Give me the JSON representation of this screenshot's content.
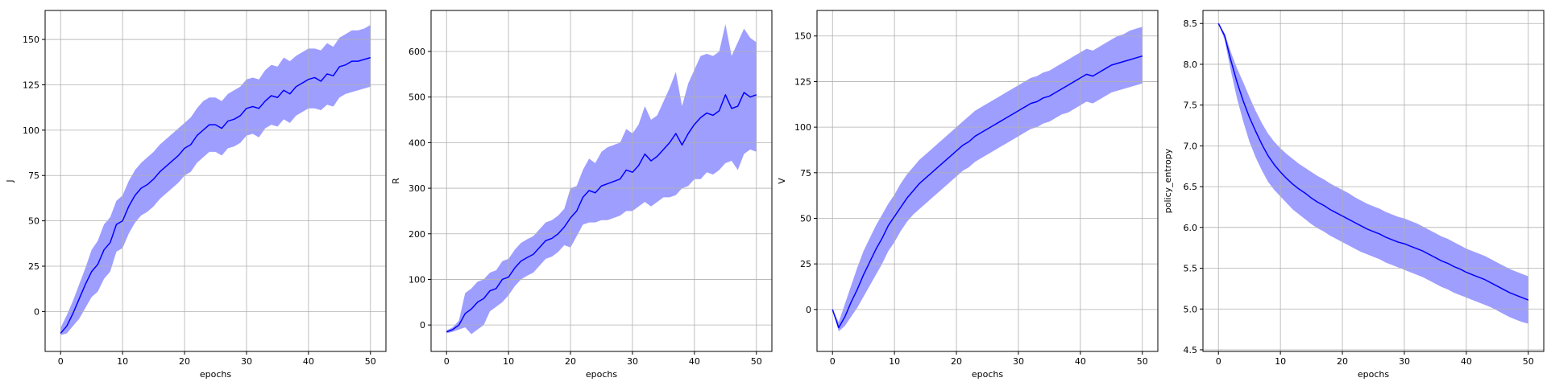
{
  "colors": {
    "line": "#0000ff",
    "band": "#9e9eff",
    "grid": "#b0b0b0"
  },
  "chart_data": [
    {
      "type": "line",
      "xlabel": "epochs",
      "ylabel": "J",
      "xlim": [
        -2.5,
        52.5
      ],
      "ylim": [
        -22,
        166
      ],
      "xticks": [
        0,
        10,
        20,
        30,
        40,
        50
      ],
      "yticks": [
        0,
        25,
        50,
        75,
        100,
        125,
        150
      ],
      "grid": true,
      "x": [
        0,
        1,
        2,
        3,
        4,
        5,
        6,
        7,
        8,
        9,
        10,
        11,
        12,
        13,
        14,
        15,
        16,
        17,
        18,
        19,
        20,
        21,
        22,
        23,
        24,
        25,
        26,
        27,
        28,
        29,
        30,
        31,
        32,
        33,
        34,
        35,
        36,
        37,
        38,
        39,
        40,
        41,
        42,
        43,
        44,
        45,
        46,
        47,
        48,
        49,
        50
      ],
      "mean": [
        -12,
        -8,
        -1,
        7,
        15,
        22,
        26,
        34,
        38,
        48,
        50,
        58,
        64,
        68,
        70,
        73,
        77,
        80,
        83,
        86,
        90,
        92,
        97,
        100,
        103,
        103,
        101,
        105,
        106,
        108,
        112,
        113,
        112,
        116,
        119,
        118,
        122,
        120,
        124,
        126,
        128,
        129,
        127,
        131,
        130,
        135,
        136,
        138,
        138,
        139,
        140
      ],
      "upper": [
        -9,
        -2,
        6,
        15,
        24,
        34,
        39,
        48,
        52,
        61,
        64,
        72,
        78,
        82,
        85,
        88,
        92,
        95,
        98,
        101,
        104,
        107,
        112,
        116,
        118,
        118,
        116,
        120,
        122,
        124,
        128,
        129,
        128,
        133,
        136,
        135,
        140,
        138,
        141,
        143,
        145,
        145,
        144,
        148,
        146,
        151,
        153,
        155,
        155,
        156,
        158
      ],
      "lower": [
        -13,
        -12,
        -8,
        -4,
        2,
        8,
        11,
        18,
        22,
        33,
        35,
        43,
        49,
        53,
        55,
        58,
        62,
        65,
        68,
        71,
        75,
        77,
        82,
        85,
        88,
        88,
        86,
        90,
        91,
        93,
        97,
        98,
        96,
        101,
        103,
        102,
        106,
        104,
        108,
        110,
        112,
        112,
        111,
        114,
        113,
        118,
        120,
        121,
        122,
        123,
        124
      ]
    },
    {
      "type": "line",
      "xlabel": "epochs",
      "ylabel": "R",
      "xlim": [
        -2.5,
        52.5
      ],
      "ylim": [
        -58,
        690
      ],
      "xticks": [
        0,
        10,
        20,
        30,
        40,
        50
      ],
      "yticks": [
        0,
        100,
        200,
        300,
        400,
        500,
        600
      ],
      "grid": true,
      "x": [
        0,
        1,
        2,
        3,
        4,
        5,
        6,
        7,
        8,
        9,
        10,
        11,
        12,
        13,
        14,
        15,
        16,
        17,
        18,
        19,
        20,
        21,
        22,
        23,
        24,
        25,
        26,
        27,
        28,
        29,
        30,
        31,
        32,
        33,
        34,
        35,
        36,
        37,
        38,
        39,
        40,
        41,
        42,
        43,
        44,
        45,
        46,
        47,
        48,
        49,
        50
      ],
      "mean": [
        -15,
        -10,
        0,
        25,
        35,
        50,
        58,
        75,
        80,
        100,
        105,
        125,
        140,
        148,
        155,
        170,
        185,
        190,
        200,
        215,
        235,
        250,
        280,
        295,
        290,
        305,
        310,
        315,
        320,
        340,
        335,
        350,
        375,
        360,
        370,
        385,
        400,
        420,
        395,
        420,
        440,
        455,
        465,
        460,
        470,
        505,
        475,
        480,
        510,
        500,
        505
      ],
      "upper": [
        -12,
        -5,
        10,
        70,
        80,
        95,
        100,
        115,
        120,
        140,
        145,
        165,
        180,
        188,
        195,
        210,
        225,
        230,
        240,
        255,
        300,
        305,
        340,
        365,
        355,
        380,
        390,
        395,
        400,
        430,
        420,
        440,
        480,
        450,
        460,
        490,
        520,
        555,
        480,
        530,
        560,
        590,
        595,
        590,
        600,
        660,
        590,
        620,
        650,
        630,
        620
      ],
      "lower": [
        -18,
        -15,
        -10,
        -5,
        -20,
        -10,
        0,
        30,
        40,
        50,
        65,
        85,
        100,
        108,
        115,
        130,
        145,
        150,
        160,
        175,
        170,
        195,
        220,
        225,
        225,
        230,
        230,
        235,
        240,
        250,
        250,
        260,
        270,
        260,
        270,
        280,
        280,
        285,
        300,
        305,
        320,
        320,
        335,
        330,
        340,
        355,
        360,
        340,
        375,
        385,
        380
      ]
    },
    {
      "type": "line",
      "xlabel": "epochs",
      "ylabel": "V",
      "xlim": [
        -2.5,
        52.5
      ],
      "ylim": [
        -23,
        164
      ],
      "xticks": [
        0,
        10,
        20,
        30,
        40,
        50
      ],
      "yticks": [
        0,
        25,
        50,
        75,
        100,
        125,
        150
      ],
      "grid": true,
      "x": [
        0,
        1,
        2,
        3,
        4,
        5,
        6,
        7,
        8,
        9,
        10,
        11,
        12,
        13,
        14,
        15,
        16,
        17,
        18,
        19,
        20,
        21,
        22,
        23,
        24,
        25,
        26,
        27,
        28,
        29,
        30,
        31,
        32,
        33,
        34,
        35,
        36,
        37,
        38,
        39,
        40,
        41,
        42,
        43,
        44,
        45,
        46,
        47,
        48,
        49,
        50
      ],
      "mean": [
        0,
        -10,
        -4,
        4,
        11,
        19,
        26,
        33,
        39,
        46,
        51,
        56,
        61,
        65,
        69,
        72,
        75,
        78,
        81,
        84,
        87,
        90,
        92,
        95,
        97,
        99,
        101,
        103,
        105,
        107,
        109,
        111,
        113,
        114,
        116,
        117,
        119,
        121,
        123,
        125,
        127,
        129,
        128,
        130,
        132,
        134,
        135,
        136,
        137,
        138,
        139
      ],
      "upper": [
        0,
        -7,
        3,
        13,
        23,
        32,
        39,
        46,
        52,
        58,
        63,
        69,
        74,
        78,
        82,
        85,
        88,
        91,
        94,
        97,
        100,
        103,
        106,
        109,
        111,
        113,
        115,
        117,
        119,
        121,
        123,
        125,
        127,
        128,
        130,
        131,
        133,
        135,
        137,
        139,
        141,
        143,
        142,
        144,
        146,
        148,
        150,
        151,
        153,
        154,
        155
      ],
      "lower": [
        0,
        -12,
        -9,
        -4,
        1,
        7,
        13,
        19,
        25,
        32,
        37,
        43,
        48,
        52,
        55,
        58,
        61,
        64,
        67,
        70,
        73,
        76,
        78,
        81,
        83,
        85,
        87,
        89,
        91,
        93,
        95,
        97,
        99,
        100,
        102,
        103,
        105,
        107,
        108,
        110,
        112,
        114,
        113,
        115,
        117,
        119,
        120,
        121,
        122,
        123,
        124
      ]
    },
    {
      "type": "line",
      "xlabel": "epochs",
      "ylabel": "policy_entropy",
      "xlim": [
        -2.5,
        52.5
      ],
      "ylim": [
        4.48,
        8.66
      ],
      "xticks": [
        0,
        10,
        20,
        30,
        40,
        50
      ],
      "yticks": [
        4.5,
        5.0,
        5.5,
        6.0,
        6.5,
        7.0,
        7.5,
        8.0,
        8.5
      ],
      "grid": true,
      "x": [
        0,
        1,
        2,
        3,
        4,
        5,
        6,
        7,
        8,
        9,
        10,
        11,
        12,
        13,
        14,
        15,
        16,
        17,
        18,
        19,
        20,
        21,
        22,
        23,
        24,
        25,
        26,
        27,
        28,
        29,
        30,
        31,
        32,
        33,
        34,
        35,
        36,
        37,
        38,
        39,
        40,
        41,
        42,
        43,
        44,
        45,
        46,
        47,
        48,
        49,
        50
      ],
      "mean": [
        8.5,
        8.35,
        8.05,
        7.78,
        7.55,
        7.35,
        7.18,
        7.02,
        6.88,
        6.77,
        6.68,
        6.6,
        6.53,
        6.47,
        6.42,
        6.36,
        6.31,
        6.27,
        6.22,
        6.18,
        6.14,
        6.1,
        6.06,
        6.02,
        5.98,
        5.95,
        5.92,
        5.88,
        5.85,
        5.82,
        5.8,
        5.77,
        5.74,
        5.71,
        5.67,
        5.63,
        5.59,
        5.56,
        5.52,
        5.49,
        5.45,
        5.42,
        5.39,
        5.36,
        5.32,
        5.28,
        5.24,
        5.2,
        5.17,
        5.14,
        5.11
      ],
      "upper": [
        8.5,
        8.38,
        8.15,
        7.95,
        7.78,
        7.6,
        7.43,
        7.28,
        7.15,
        7.05,
        6.97,
        6.9,
        6.84,
        6.78,
        6.73,
        6.68,
        6.63,
        6.59,
        6.54,
        6.5,
        6.46,
        6.42,
        6.37,
        6.33,
        6.29,
        6.26,
        6.23,
        6.19,
        6.16,
        6.13,
        6.11,
        6.08,
        6.05,
        6.01,
        5.97,
        5.93,
        5.89,
        5.86,
        5.82,
        5.78,
        5.74,
        5.71,
        5.68,
        5.65,
        5.61,
        5.57,
        5.53,
        5.49,
        5.46,
        5.43,
        5.4
      ],
      "lower": [
        8.5,
        8.3,
        7.92,
        7.58,
        7.3,
        7.05,
        6.86,
        6.7,
        6.56,
        6.46,
        6.38,
        6.3,
        6.22,
        6.16,
        6.1,
        6.04,
        5.99,
        5.95,
        5.9,
        5.86,
        5.82,
        5.78,
        5.74,
        5.7,
        5.67,
        5.64,
        5.61,
        5.57,
        5.54,
        5.51,
        5.48,
        5.45,
        5.42,
        5.39,
        5.35,
        5.31,
        5.27,
        5.24,
        5.2,
        5.17,
        5.14,
        5.11,
        5.08,
        5.05,
        5.02,
        4.98,
        4.94,
        4.9,
        4.87,
        4.84,
        4.82
      ]
    }
  ]
}
